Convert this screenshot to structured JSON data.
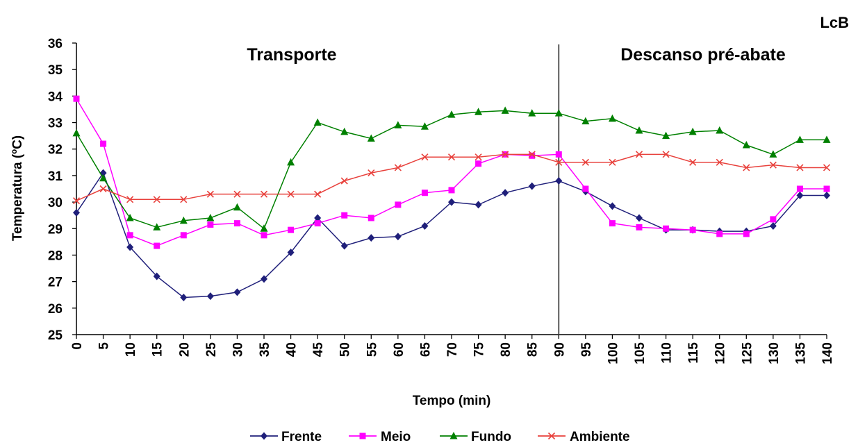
{
  "corner_label": "LcB",
  "chart_data": {
    "type": "line",
    "xlabel": "Tempo (min)",
    "ylabel": "Temperatura (ºC)",
    "x": [
      0,
      5,
      10,
      15,
      20,
      25,
      30,
      35,
      40,
      45,
      50,
      55,
      60,
      65,
      70,
      75,
      80,
      85,
      90,
      95,
      100,
      105,
      110,
      115,
      120,
      125,
      130,
      135,
      140
    ],
    "x_tick_labels": [
      "0",
      "5",
      "10",
      "15",
      "20",
      "25",
      "30",
      "35",
      "40",
      "45",
      "50",
      "55",
      "60",
      "65",
      "70",
      "75",
      "80",
      "85",
      "90",
      "95",
      "100",
      "105",
      "110",
      "115",
      "120",
      "125",
      "130",
      "135",
      "140"
    ],
    "xlim": [
      0,
      140
    ],
    "ylim": [
      25,
      36
    ],
    "y_ticks": [
      25,
      26,
      27,
      28,
      29,
      30,
      31,
      32,
      33,
      34,
      35,
      36
    ],
    "grid": false,
    "legend_position": "bottom",
    "series": [
      {
        "name": "Frente",
        "color": "#1f1f7a",
        "marker": "diamond",
        "values": [
          29.6,
          31.1,
          28.3,
          27.2,
          26.4,
          26.45,
          26.6,
          27.1,
          28.1,
          29.4,
          28.35,
          28.65,
          28.7,
          29.1,
          30.0,
          29.9,
          30.35,
          30.6,
          30.8,
          30.4,
          29.85,
          29.4,
          28.95,
          28.95,
          28.9,
          28.9,
          29.1,
          30.25,
          30.25
        ]
      },
      {
        "name": "Meio",
        "color": "#ff00ff",
        "marker": "square",
        "values": [
          33.9,
          32.2,
          28.75,
          28.35,
          28.75,
          29.15,
          29.2,
          28.75,
          28.95,
          29.2,
          29.5,
          29.4,
          29.9,
          30.35,
          30.45,
          31.45,
          31.8,
          31.75,
          31.8,
          30.5,
          29.2,
          29.05,
          29.0,
          28.95,
          28.8,
          28.8,
          29.35,
          30.5,
          30.5
        ]
      },
      {
        "name": "Fundo",
        "color": "#008000",
        "marker": "triangle",
        "values": [
          32.6,
          30.9,
          29.4,
          29.05,
          29.3,
          29.4,
          29.8,
          29.0,
          31.5,
          33.0,
          32.65,
          32.4,
          32.9,
          32.85,
          33.3,
          33.4,
          33.45,
          33.35,
          33.35,
          33.05,
          33.15,
          32.7,
          32.5,
          32.65,
          32.7,
          32.15,
          31.8,
          32.35,
          32.35
        ]
      },
      {
        "name": "Ambiente",
        "color": "#e8413c",
        "marker": "x",
        "values": [
          30.05,
          30.5,
          30.1,
          30.1,
          30.1,
          30.3,
          30.3,
          30.3,
          30.3,
          30.3,
          30.8,
          31.1,
          31.3,
          31.7,
          31.7,
          31.7,
          31.8,
          31.8,
          31.5,
          31.5,
          31.5,
          31.8,
          31.8,
          31.5,
          31.5,
          31.3,
          31.4,
          31.3,
          31.3
        ]
      }
    ],
    "divider_x": 90,
    "annotations": [
      "Transporte",
      "Descanso pré-abate"
    ]
  }
}
